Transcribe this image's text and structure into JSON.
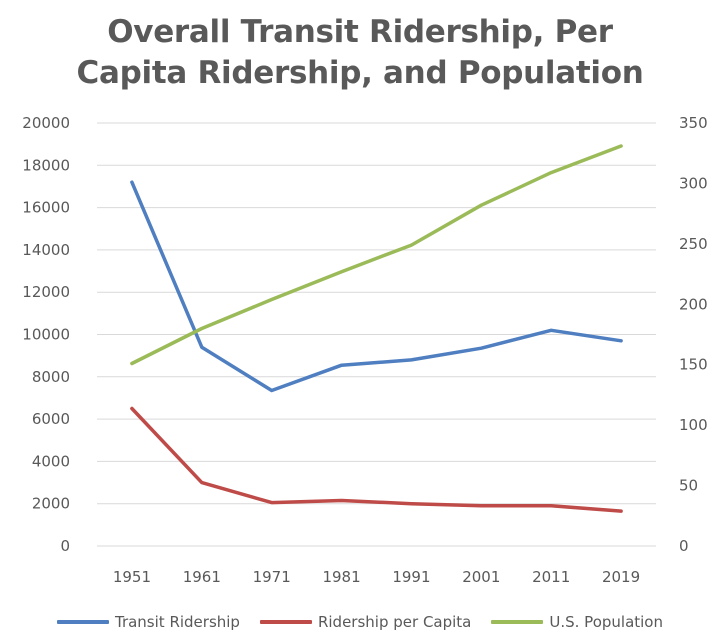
{
  "chart_data": {
    "type": "line",
    "title_lines": [
      "Overall Transit Ridership, Per",
      "Capita Ridership, and Population"
    ],
    "xlabel": "",
    "ylabel": "",
    "categories": [
      "1951",
      "1961",
      "1971",
      "1981",
      "1991",
      "2001",
      "2011",
      "2019"
    ],
    "y_left": {
      "min": 0,
      "max": 20000,
      "ticks": [
        "0",
        "2000",
        "4000",
        "6000",
        "8000",
        "10000",
        "12000",
        "14000",
        "16000",
        "18000",
        "20000"
      ]
    },
    "y_right": {
      "min": 0,
      "max": 350,
      "ticks": [
        "0",
        "50",
        "100",
        "150",
        "200",
        "250",
        "300",
        "350"
      ]
    },
    "grid": true,
    "legend_position": "bottom",
    "series": [
      {
        "name": "Transit Ridership",
        "axis": "left",
        "color": "#4f7fc0",
        "values": [
          17200,
          9400,
          7350,
          8550,
          8800,
          9350,
          10200,
          9700
        ]
      },
      {
        "name": "Ridership per Capita",
        "axis": "left",
        "color": "#be4b48",
        "values": [
          6500,
          3000,
          2050,
          2150,
          2000,
          1900,
          1900,
          1650
        ]
      },
      {
        "name": "U.S. Population",
        "axis": "right",
        "color": "#9bbb59",
        "values": [
          151,
          180,
          204,
          227,
          249,
          282,
          309,
          331
        ]
      }
    ]
  }
}
